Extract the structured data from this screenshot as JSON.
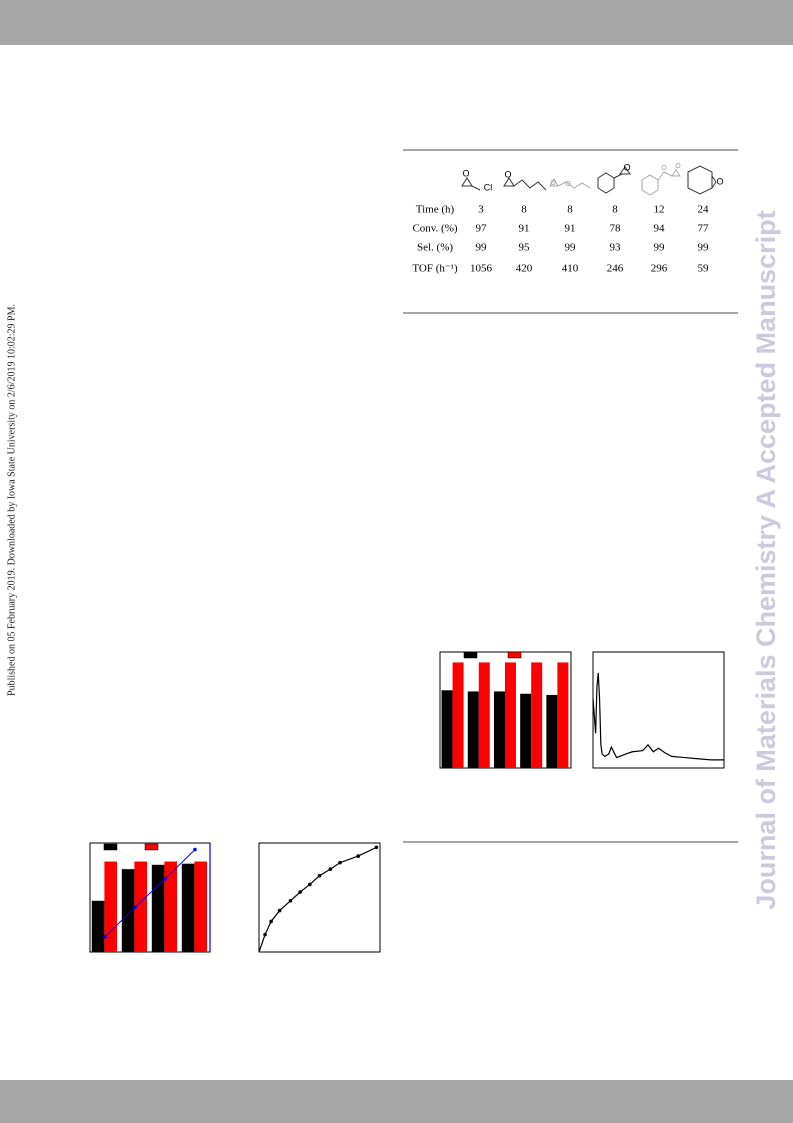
{
  "sidebar_text": "Published on 05 February 2019. Downloaded by Iowa State University on 2/6/2019 10:02:29 PM.",
  "watermark": "Journal of Materials Chemistry A Accepted Manuscript",
  "table": {
    "atom_labels": [
      "O",
      "Cl",
      "O",
      "O",
      "O",
      "O",
      "O",
      "O",
      "O"
    ],
    "row_labels": [
      "Time (h)",
      "Conv. (%)",
      "Sel. (%)",
      "TOF (h⁻¹)"
    ],
    "rows": [
      [
        3,
        8,
        8,
        8,
        12,
        24
      ],
      [
        97,
        91,
        91,
        78,
        94,
        77
      ],
      [
        99,
        95,
        99,
        93,
        99,
        99
      ],
      [
        1056,
        420,
        410,
        246,
        296,
        59
      ]
    ]
  },
  "figures": [
    {
      "type": "bar",
      "ylim": [
        0,
        100
      ],
      "series": [
        {
          "color": "#000000",
          "values": [
            67,
            66,
            66,
            64,
            63
          ]
        },
        {
          "color": "#ff0000",
          "values": [
            91,
            91,
            91,
            91,
            91
          ]
        }
      ]
    },
    {
      "type": "line",
      "xlim": [
        0,
        100
      ],
      "ylim": [
        0,
        100
      ],
      "color": "#000000",
      "x": [
        0,
        2,
        3,
        4,
        5,
        6,
        7,
        9,
        12,
        14,
        18,
        25,
        30,
        38,
        42,
        46,
        50,
        55,
        60,
        70,
        80,
        90,
        100
      ],
      "values": [
        60,
        30,
        70,
        82,
        60,
        20,
        12,
        10,
        12,
        18,
        9,
        12,
        14,
        15,
        20,
        14,
        17,
        13,
        10,
        9,
        8,
        7,
        7
      ]
    },
    {
      "type": "bar",
      "ylim": [
        0,
        100
      ],
      "y2lim": [
        0,
        100
      ],
      "series": [
        {
          "color": "#000000",
          "values": [
            47,
            76,
            80,
            81
          ]
        },
        {
          "color": "#ff0000",
          "values": [
            83,
            83,
            83,
            83
          ]
        },
        {
          "color": "#0000ff",
          "axis": "y2",
          "values": [
            14,
            41,
            67,
            94
          ]
        }
      ]
    },
    {
      "type": "scatter-line",
      "xlim": [
        0,
        100
      ],
      "ylim": [
        0,
        100
      ],
      "color": "#000000",
      "x": [
        0,
        5,
        10,
        17,
        26,
        34,
        42,
        50,
        59,
        67,
        82,
        97
      ],
      "values": [
        0,
        16,
        28,
        38,
        47,
        55,
        62,
        70,
        76,
        82,
        88,
        96
      ]
    }
  ]
}
